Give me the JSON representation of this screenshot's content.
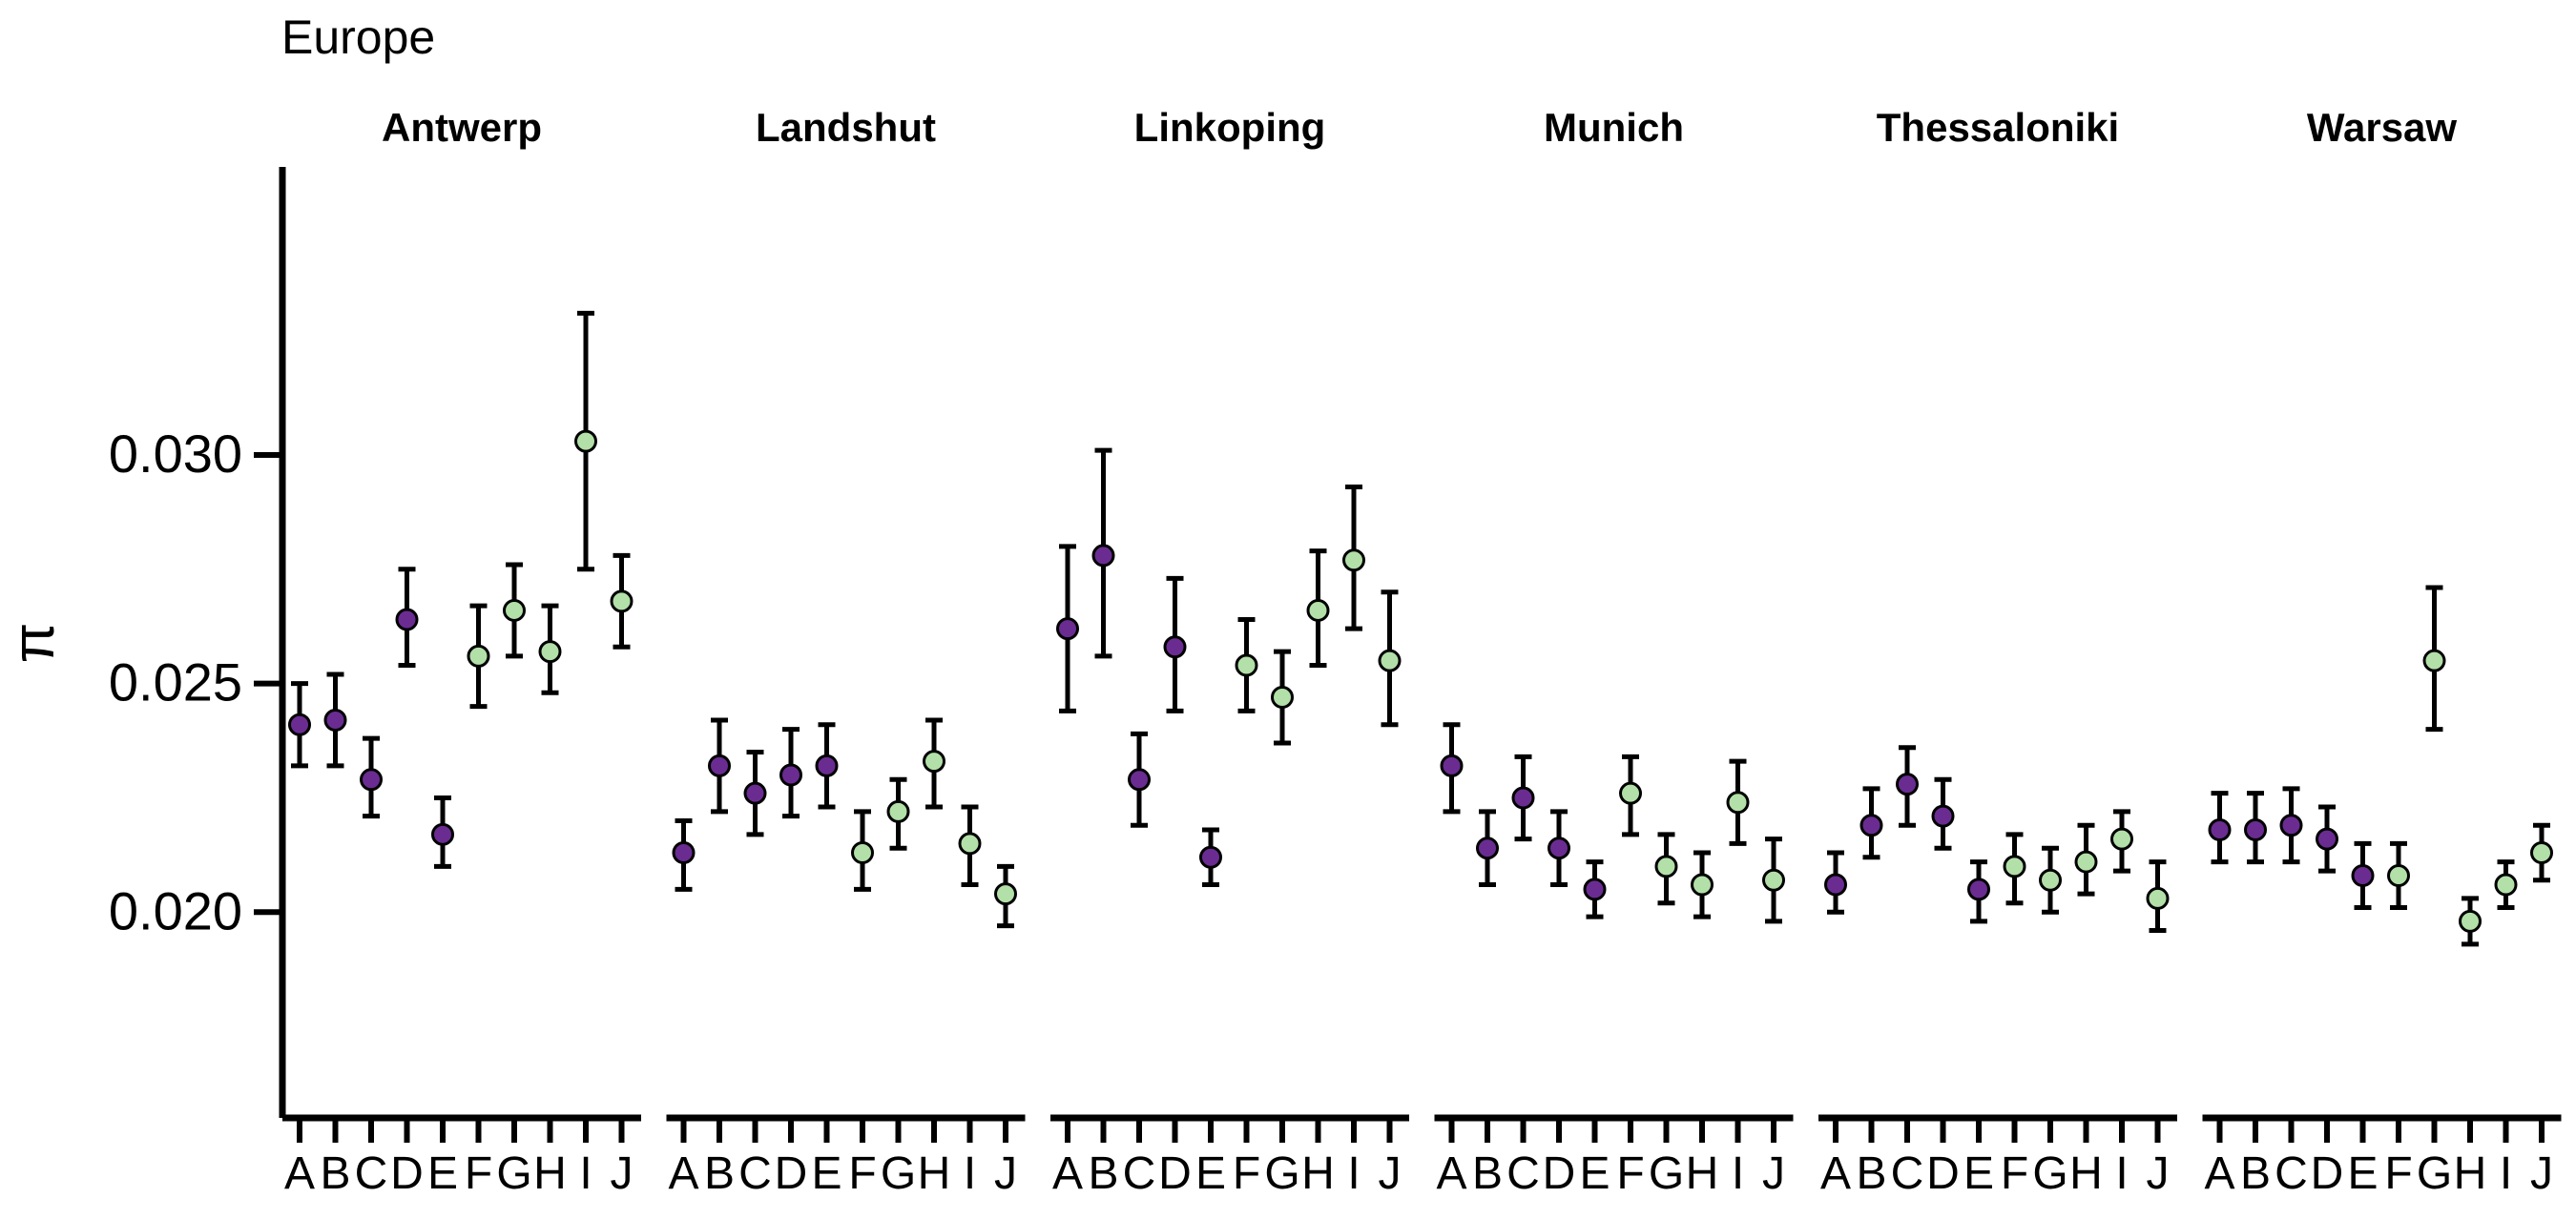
{
  "chart_data": {
    "type": "scatter",
    "title": "Europe",
    "ylabel": "π",
    "xlabel": "",
    "ylim": [
      0.0155,
      0.0363
    ],
    "y_ticks": [
      0.02,
      0.025,
      0.03
    ],
    "y_tick_labels": [
      "0.020",
      "0.025",
      "0.030"
    ],
    "categories": [
      "A",
      "B",
      "C",
      "D",
      "E",
      "F",
      "G",
      "H",
      "I",
      "J"
    ],
    "grid": false,
    "legend": "none",
    "colors": {
      "group1": "#6a2c91",
      "group2": "#b2e0a8",
      "errorbar": "#000000"
    },
    "point_groups": [
      "group1",
      "group1",
      "group1",
      "group1",
      "group1",
      "group2",
      "group2",
      "group2",
      "group2",
      "group2"
    ],
    "panels": [
      {
        "name": "Antwerp",
        "values": [
          0.0241,
          0.0242,
          0.0229,
          0.0264,
          0.0217,
          0.0256,
          0.0266,
          0.0257,
          0.0303,
          0.0268
        ],
        "lower": [
          0.0232,
          0.0232,
          0.0221,
          0.0254,
          0.021,
          0.0245,
          0.0256,
          0.0248,
          0.0275,
          0.0258
        ],
        "upper": [
          0.025,
          0.0252,
          0.0238,
          0.0275,
          0.0225,
          0.0267,
          0.0276,
          0.0267,
          0.0331,
          0.0278
        ]
      },
      {
        "name": "Landshut",
        "values": [
          0.0213,
          0.0232,
          0.0226,
          0.023,
          0.0232,
          0.0213,
          0.0222,
          0.0233,
          0.0215,
          0.0204
        ],
        "lower": [
          0.0205,
          0.0222,
          0.0217,
          0.0221,
          0.0223,
          0.0205,
          0.0214,
          0.0223,
          0.0206,
          0.0197
        ],
        "upper": [
          0.022,
          0.0242,
          0.0235,
          0.024,
          0.0241,
          0.0222,
          0.0229,
          0.0242,
          0.0223,
          0.021
        ]
      },
      {
        "name": "Linkoping",
        "values": [
          0.0262,
          0.0278,
          0.0229,
          0.0258,
          0.0212,
          0.0254,
          0.0247,
          0.0266,
          0.0277,
          0.0255
        ],
        "lower": [
          0.0244,
          0.0256,
          0.0219,
          0.0244,
          0.0206,
          0.0244,
          0.0237,
          0.0254,
          0.0262,
          0.0241
        ],
        "upper": [
          0.028,
          0.0301,
          0.0239,
          0.0273,
          0.0218,
          0.0264,
          0.0257,
          0.0279,
          0.0293,
          0.027
        ]
      },
      {
        "name": "Munich",
        "values": [
          0.0232,
          0.0214,
          0.0225,
          0.0214,
          0.0205,
          0.0226,
          0.021,
          0.0206,
          0.0224,
          0.0207
        ],
        "lower": [
          0.0222,
          0.0206,
          0.0216,
          0.0206,
          0.0199,
          0.0217,
          0.0202,
          0.0199,
          0.0215,
          0.0198
        ],
        "upper": [
          0.0241,
          0.0222,
          0.0234,
          0.0222,
          0.0211,
          0.0234,
          0.0217,
          0.0213,
          0.0233,
          0.0216
        ]
      },
      {
        "name": "Thessaloniki",
        "values": [
          0.0206,
          0.0219,
          0.0228,
          0.0221,
          0.0205,
          0.021,
          0.0207,
          0.0211,
          0.0216,
          0.0203
        ],
        "lower": [
          0.02,
          0.0212,
          0.0219,
          0.0214,
          0.0198,
          0.0202,
          0.02,
          0.0204,
          0.0209,
          0.0196
        ],
        "upper": [
          0.0213,
          0.0227,
          0.0236,
          0.0229,
          0.0211,
          0.0217,
          0.0214,
          0.0219,
          0.0222,
          0.0211
        ]
      },
      {
        "name": "Warsaw",
        "values": [
          0.0218,
          0.0218,
          0.0219,
          0.0216,
          0.0208,
          0.0208,
          0.0255,
          0.0198,
          0.0206,
          0.0213
        ],
        "lower": [
          0.0211,
          0.0211,
          0.0211,
          0.0209,
          0.0201,
          0.0201,
          0.024,
          0.0193,
          0.0201,
          0.0207
        ],
        "upper": [
          0.0226,
          0.0226,
          0.0227,
          0.0223,
          0.0215,
          0.0215,
          0.0271,
          0.0203,
          0.0211,
          0.0219
        ]
      }
    ]
  }
}
